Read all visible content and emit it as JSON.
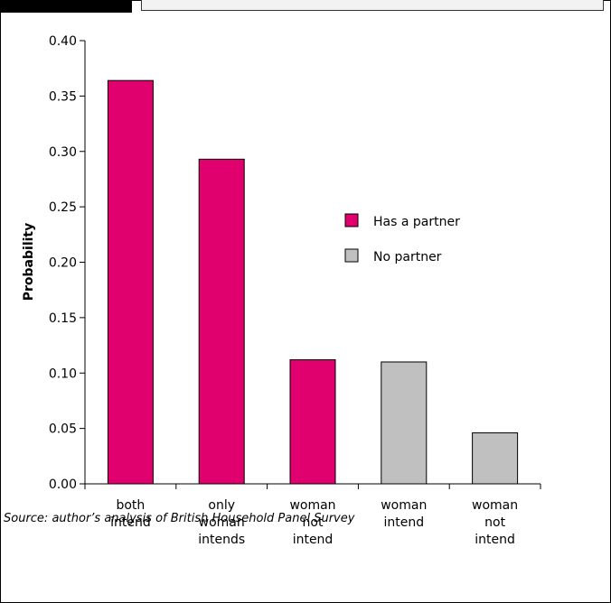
{
  "chart_data": {
    "type": "bar",
    "ylabel": "Probability",
    "ylim": [
      0,
      0.4
    ],
    "yticks": [
      "0.00",
      "0.05",
      "0.10",
      "0.15",
      "0.20",
      "0.25",
      "0.30",
      "0.35",
      "0.40"
    ],
    "categories": [
      [
        "both",
        "intend"
      ],
      [
        "only",
        "woman",
        "intends"
      ],
      [
        "woman",
        "not",
        "intend"
      ],
      [
        "woman",
        "intend"
      ],
      [
        "woman",
        "not",
        "intend"
      ]
    ],
    "values": [
      0.364,
      0.293,
      0.112,
      0.11,
      0.046
    ],
    "bar_series": [
      "Has a partner",
      "Has a partner",
      "Has a partner",
      "No partner",
      "No partner"
    ],
    "series": [
      {
        "name": "Has a partner",
        "color": "#e0006e"
      },
      {
        "name": "No partner",
        "color": "#c0c0c0"
      }
    ],
    "legend_position": "center-right"
  },
  "source_note": "Source: author’s analysis of British Household Panel Survey"
}
